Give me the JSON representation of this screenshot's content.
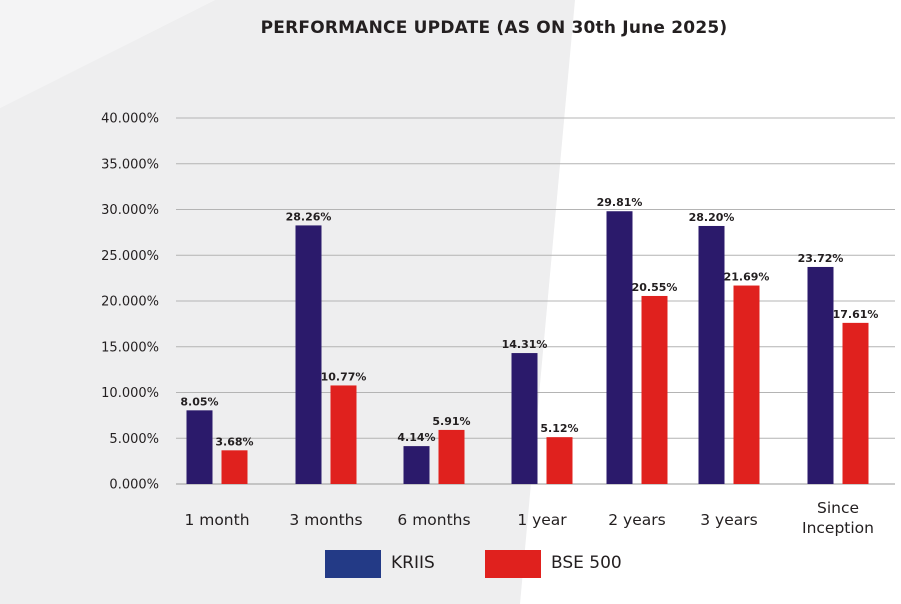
{
  "chart_data": {
    "type": "bar",
    "title": "PERFORMANCE UPDATE (AS ON 30th June 2025)",
    "xlabel": "",
    "ylabel": "",
    "ylim": [
      0,
      40
    ],
    "yticks": [
      0,
      5,
      10,
      15,
      20,
      25,
      30,
      35,
      40
    ],
    "ytick_labels": [
      "0.000%",
      "5.000%",
      "10.000%",
      "15.000%",
      "20.000%",
      "25.000%",
      "30.000%",
      "35.000%",
      "40.000%"
    ],
    "grid": true,
    "legend_position": "bottom",
    "categories": [
      "1 month",
      "3 months",
      "6 months",
      "1 year",
      "2 years",
      "3 years",
      "Since Inception"
    ],
    "series": [
      {
        "name": "KRIIS",
        "color": "#2b1a6b",
        "legend_color": "#233a86",
        "values": [
          8.05,
          28.26,
          4.14,
          14.31,
          29.81,
          28.2,
          23.72
        ],
        "labels": [
          "8.05%",
          "28.26%",
          "4.14%",
          "14.31%",
          "29.81%",
          "28.20%",
          "23.72%"
        ]
      },
      {
        "name": "BSE 500",
        "color": "#e0211e",
        "legend_color": "#e0211e",
        "values": [
          3.68,
          10.77,
          5.91,
          5.12,
          20.55,
          21.69,
          17.61
        ],
        "labels": [
          "3.68%",
          "10.77%",
          "5.91%",
          "5.12%",
          "20.55%",
          "21.69%",
          "17.61%"
        ]
      }
    ]
  }
}
